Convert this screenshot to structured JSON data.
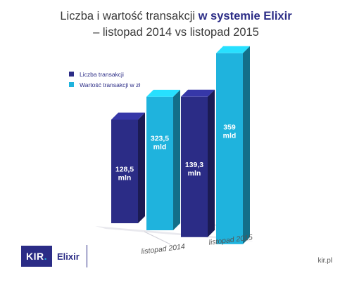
{
  "title": {
    "part1": "Liczba i wartość transakcji ",
    "part2": "w systemie Elixir",
    "line2": "– listopad 2014 vs listopad 2015"
  },
  "colors": {
    "navy": "#2b2c86",
    "cyan": "#1fb3dd",
    "brand": "#2b2c86"
  },
  "chart_data": {
    "type": "bar",
    "title": "Liczba i wartość transakcji w systemie Elixir – listopad 2014 vs listopad 2015",
    "categories": [
      "listopad 2014",
      "listopad 2015"
    ],
    "series": [
      {
        "name": "Liczba transakcji",
        "unit": "mln",
        "values": [
          128.5,
          139.3
        ],
        "labels": [
          "128,5\nmln",
          "139,3\nmln"
        ],
        "color": "#2b2c86"
      },
      {
        "name": "Wartość transakcji w zł",
        "unit": "mld",
        "values": [
          323.5,
          359
        ],
        "labels": [
          "323,5\nmld",
          "359\nmld"
        ],
        "color": "#1fb3dd"
      }
    ],
    "legend": "top-left",
    "grid": false
  },
  "footer": {
    "logo_kir": "KIR",
    "logo_elixir": "Elixir",
    "site": "kir.pl"
  }
}
